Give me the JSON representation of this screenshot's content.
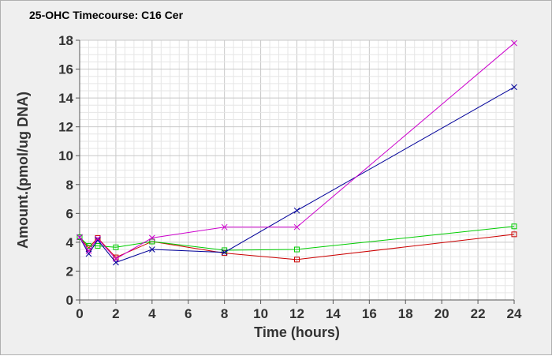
{
  "chart_data": {
    "type": "line",
    "title": "25-OHC Timecourse: C16 Cer",
    "xlabel": "Time (hours)",
    "ylabel": "Amount.(pmol/ug DNA)",
    "xlim": [
      0,
      24
    ],
    "ylim": [
      0,
      18
    ],
    "xticks": [
      0,
      2,
      4,
      6,
      8,
      10,
      12,
      14,
      16,
      18,
      20,
      22,
      24
    ],
    "yticks": [
      0,
      2,
      4,
      6,
      8,
      10,
      12,
      14,
      16,
      18
    ],
    "grid": true,
    "legend": "none",
    "series": [
      {
        "color": "#cc0000",
        "marker": "square",
        "points": [
          [
            0,
            4.35
          ],
          [
            0.5,
            3.6
          ],
          [
            1,
            4.3
          ],
          [
            2,
            2.95
          ],
          [
            4,
            4.05
          ],
          [
            8,
            3.25
          ],
          [
            12,
            2.8
          ],
          [
            24,
            4.55
          ]
        ]
      },
      {
        "color": "#00cc00",
        "marker": "square",
        "points": [
          [
            0,
            4.35
          ],
          [
            0.5,
            3.75
          ],
          [
            1,
            3.75
          ],
          [
            2,
            3.65
          ],
          [
            4,
            4.05
          ],
          [
            8,
            3.45
          ],
          [
            12,
            3.5
          ],
          [
            24,
            5.1
          ]
        ]
      },
      {
        "color": "#000099",
        "marker": "x",
        "points": [
          [
            0,
            4.35
          ],
          [
            0.5,
            3.2
          ],
          [
            1,
            4.15
          ],
          [
            2,
            2.6
          ],
          [
            4,
            3.5
          ],
          [
            8,
            3.3
          ],
          [
            12,
            6.2
          ],
          [
            24,
            14.75
          ]
        ]
      },
      {
        "color": "#cc00cc",
        "marker": "x",
        "points": [
          [
            0,
            4.35
          ],
          [
            0.5,
            3.4
          ],
          [
            1,
            4.25
          ],
          [
            2,
            2.85
          ],
          [
            4,
            4.3
          ],
          [
            8,
            5.05
          ],
          [
            12,
            5.05
          ],
          [
            24,
            17.8
          ]
        ]
      }
    ]
  }
}
